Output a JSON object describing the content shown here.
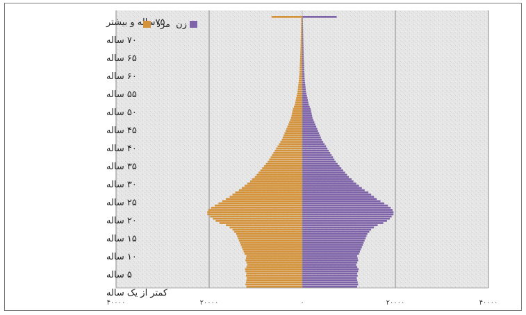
{
  "chart_data": {
    "type": "bar",
    "orientation": "horizontal-population-pyramid",
    "title": "",
    "xlabel": "",
    "ylabel": "",
    "x_tick_labels": [
      "۴۰۰۰۰",
      "۲۰۰۰۰",
      "۰",
      "۲۰۰۰۰",
      "۴۰۰۰۰"
    ],
    "x_tick_values": [
      -40000,
      -20000,
      0,
      20000,
      40000
    ],
    "xlim": [
      -40000,
      40000
    ],
    "grid_x": true,
    "legend": {
      "placement": "top-left",
      "entries": [
        {
          "label": "مرد",
          "color": "#d4923a"
        },
        {
          "label": "زن",
          "color": "#7e63a8"
        }
      ]
    },
    "y_tick_labels": [
      "کمتر از یک ساله",
      "۵ ساله",
      "۱۰ ساله",
      "۱۵ ساله",
      "۲۰ ساله",
      "۲۵ ساله",
      "۳۰ ساله",
      "۳۵ ساله",
      "۴۰ ساله",
      "۴۵ ساله",
      "۵۰ ساله",
      "۵۵ ساله",
      "۶۰ ساله",
      "۶۵ ساله",
      "۷۰ ساله",
      "۷۵ساله و بیشتر"
    ],
    "series": [
      {
        "name": "مرد",
        "color": "#d4923a",
        "values": [
          12000,
          12200,
          12100,
          12000,
          11900,
          12100,
          12000,
          12200,
          12300,
          12000,
          11800,
          12000,
          12200,
          12100,
          12000,
          12400,
          12600,
          12800,
          13000,
          13200,
          13400,
          13600,
          13800,
          14000,
          14200,
          14600,
          15000,
          15600,
          16400,
          17800,
          18600,
          19200,
          19800,
          20400,
          20400,
          20200,
          19600,
          18800,
          18000,
          17200,
          16400,
          15600,
          15000,
          14400,
          13600,
          13000,
          12400,
          11800,
          11200,
          10800,
          10200,
          9800,
          9400,
          9000,
          8600,
          8200,
          7800,
          7400,
          7100,
          6800,
          6500,
          6200,
          5900,
          5600,
          5300,
          5000,
          4700,
          4400,
          4200,
          4000,
          3800,
          3600,
          3400,
          3200,
          3000,
          2800,
          2600,
          2400,
          2300,
          2200,
          2100,
          2000,
          1800,
          1600,
          1500,
          1400,
          1300,
          1200,
          1100,
          1000,
          950,
          900,
          850,
          800,
          750,
          700,
          650,
          600,
          580,
          560,
          540,
          520,
          500,
          480,
          460,
          440,
          420,
          400,
          380,
          360,
          350,
          340,
          330,
          320,
          310,
          300,
          290,
          280,
          270,
          260,
          250,
          240,
          230,
          6600
        ]
      },
      {
        "name": "زن",
        "color": "#7e63a8",
        "values": [
          11800,
          12000,
          11900,
          11800,
          11700,
          11900,
          11800,
          12000,
          12100,
          11800,
          11600,
          11800,
          12000,
          11900,
          11800,
          12200,
          12400,
          12600,
          12800,
          13000,
          13200,
          13400,
          13600,
          13800,
          14000,
          14400,
          14800,
          15400,
          16200,
          17400,
          18200,
          18800,
          19200,
          19600,
          19600,
          19400,
          19000,
          18400,
          17600,
          16800,
          16000,
          15400,
          14800,
          14200,
          13400,
          12800,
          12200,
          11600,
          11000,
          10600,
          10000,
          9600,
          9200,
          8800,
          8400,
          8000,
          7600,
          7200,
          6900,
          6600,
          6300,
          6000,
          5700,
          5400,
          5100,
          4800,
          4500,
          4200,
          4000,
          3800,
          3600,
          3400,
          3200,
          3000,
          2800,
          2600,
          2400,
          2200,
          2100,
          2000,
          1900,
          1800,
          1600,
          1400,
          1300,
          1200,
          1100,
          1000,
          900,
          800,
          750,
          700,
          650,
          600,
          550,
          500,
          480,
          460,
          440,
          420,
          400,
          380,
          360,
          340,
          320,
          300,
          290,
          280,
          270,
          260,
          250,
          240,
          230,
          220,
          210,
          200,
          190,
          180,
          170,
          160,
          150,
          140,
          130,
          7400
        ]
      }
    ]
  }
}
